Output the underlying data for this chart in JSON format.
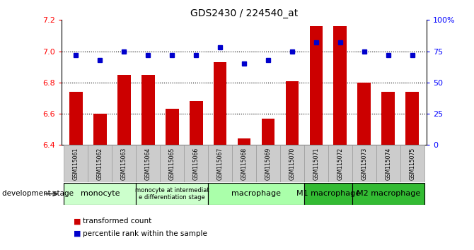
{
  "title": "GDS2430 / 224540_at",
  "samples": [
    "GSM115061",
    "GSM115062",
    "GSM115063",
    "GSM115064",
    "GSM115065",
    "GSM115066",
    "GSM115067",
    "GSM115068",
    "GSM115069",
    "GSM115070",
    "GSM115071",
    "GSM115072",
    "GSM115073",
    "GSM115074",
    "GSM115075"
  ],
  "bar_values": [
    6.74,
    6.6,
    6.85,
    6.85,
    6.63,
    6.68,
    6.93,
    6.44,
    6.57,
    6.81,
    7.16,
    7.16,
    6.8,
    6.74,
    6.74
  ],
  "dot_values": [
    72,
    68,
    75,
    72,
    72,
    72,
    78,
    65,
    68,
    75,
    82,
    82,
    75,
    72,
    72
  ],
  "ylim_left": [
    6.4,
    7.2
  ],
  "ylim_right": [
    0,
    100
  ],
  "yticks_left": [
    6.4,
    6.6,
    6.8,
    7.0,
    7.2
  ],
  "yticks_right": [
    0,
    25,
    50,
    75,
    100
  ],
  "ytick_labels_right": [
    "0",
    "25",
    "50",
    "75",
    "100%"
  ],
  "hlines": [
    6.6,
    6.8,
    7.0
  ],
  "bar_color": "#CC0000",
  "dot_color": "#0000CC",
  "bar_base": 6.4,
  "stages_data": [
    {
      "start": 0,
      "end": 3,
      "color": "#ccffcc",
      "label": "monocyte",
      "fontsize": 8
    },
    {
      "start": 3,
      "end": 6,
      "color": "#ccffcc",
      "label": "monocyte at intermediat\ne differentiation stage",
      "fontsize": 6
    },
    {
      "start": 6,
      "end": 10,
      "color": "#aaffaa",
      "label": "macrophage",
      "fontsize": 8
    },
    {
      "start": 10,
      "end": 12,
      "color": "#33bb33",
      "label": "M1 macrophage",
      "fontsize": 8
    },
    {
      "start": 12,
      "end": 15,
      "color": "#33bb33",
      "label": "M2 macrophage",
      "fontsize": 8
    }
  ],
  "legend_bar_label": "transformed count",
  "legend_dot_label": "percentile rank within the sample",
  "dev_stage_label": "development stage"
}
